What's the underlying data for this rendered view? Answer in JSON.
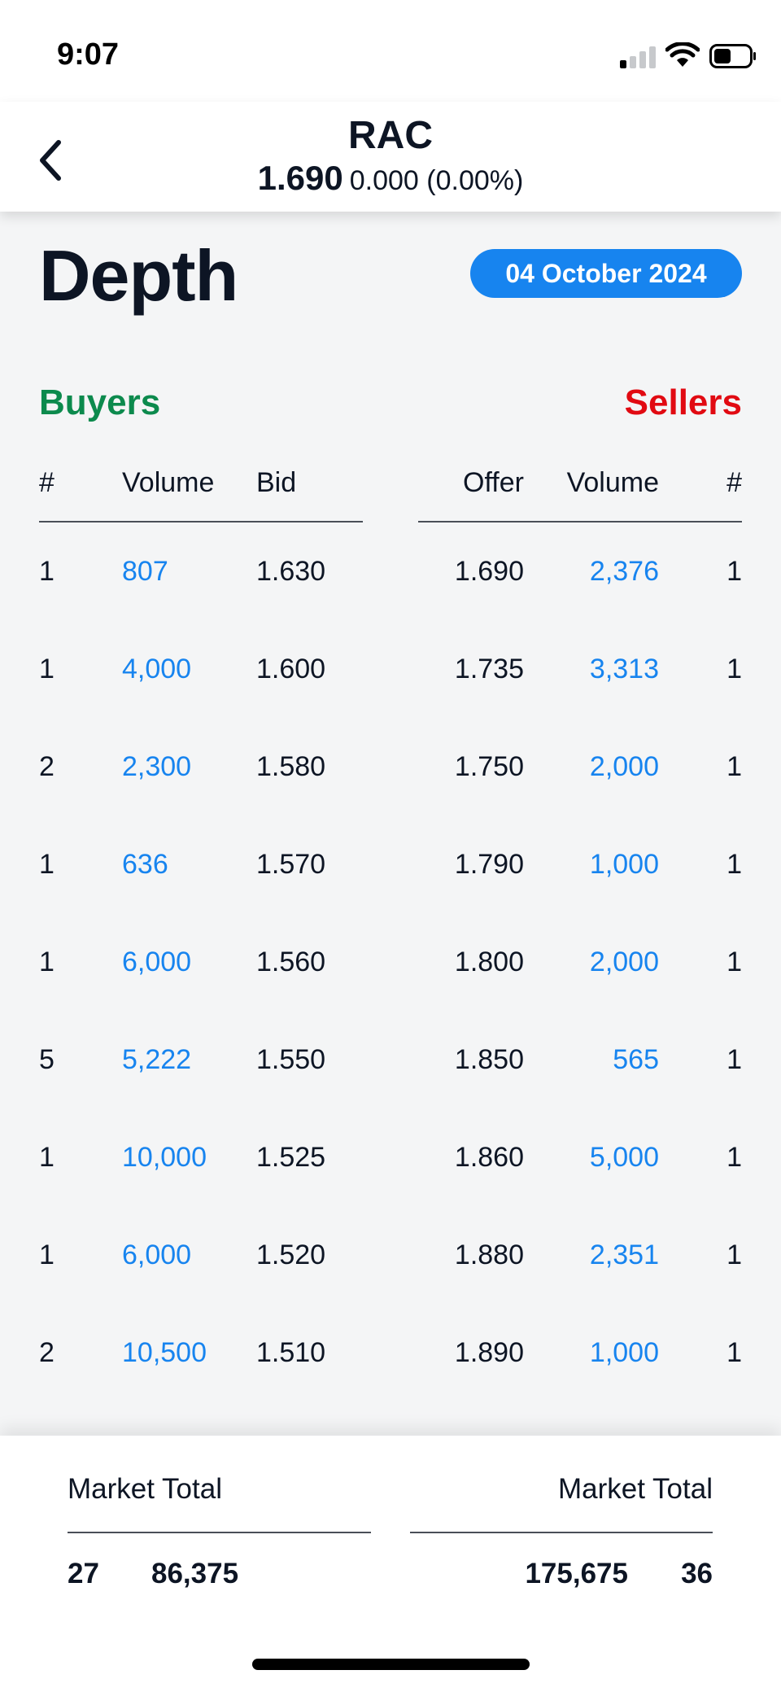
{
  "status_bar": {
    "time": "9:07"
  },
  "header": {
    "symbol": "RAC",
    "last_price": "1.690",
    "change": "0.000 (0.00%)",
    "back_icon": "chevron-left-icon"
  },
  "title": "Depth",
  "date": "04 October 2024",
  "buyers": {
    "label": "Buyers",
    "color": "#0c8a4d",
    "columns": {
      "count": "#",
      "volume": "Volume",
      "price": "Bid"
    },
    "rows": [
      {
        "count": "1",
        "volume": "807",
        "price": "1.630"
      },
      {
        "count": "1",
        "volume": "4,000",
        "price": "1.600"
      },
      {
        "count": "2",
        "volume": "2,300",
        "price": "1.580"
      },
      {
        "count": "1",
        "volume": "636",
        "price": "1.570"
      },
      {
        "count": "1",
        "volume": "6,000",
        "price": "1.560"
      },
      {
        "count": "5",
        "volume": "5,222",
        "price": "1.550"
      },
      {
        "count": "1",
        "volume": "10,000",
        "price": "1.525"
      },
      {
        "count": "1",
        "volume": "6,000",
        "price": "1.520"
      },
      {
        "count": "2",
        "volume": "10,500",
        "price": "1.510"
      }
    ]
  },
  "sellers": {
    "label": "Sellers",
    "color": "#e10a12",
    "columns": {
      "price": "Offer",
      "volume": "Volume",
      "count": "#"
    },
    "rows": [
      {
        "price": "1.690",
        "volume": "2,376",
        "count": "1"
      },
      {
        "price": "1.735",
        "volume": "3,313",
        "count": "1"
      },
      {
        "price": "1.750",
        "volume": "2,000",
        "count": "1"
      },
      {
        "price": "1.790",
        "volume": "1,000",
        "count": "1"
      },
      {
        "price": "1.800",
        "volume": "2,000",
        "count": "1"
      },
      {
        "price": "1.850",
        "volume": "565",
        "count": "1"
      },
      {
        "price": "1.860",
        "volume": "5,000",
        "count": "1"
      },
      {
        "price": "1.880",
        "volume": "2,351",
        "count": "1"
      },
      {
        "price": "1.890",
        "volume": "1,000",
        "count": "1"
      }
    ]
  },
  "totals": {
    "buy_label": "Market Total",
    "sell_label": "Market Total",
    "buy_count": "27",
    "buy_volume": "86,375",
    "sell_volume": "175,675",
    "sell_count": "36"
  },
  "colors": {
    "accent": "#1784ef",
    "text": "#0d1524",
    "background": "#f4f5f6"
  }
}
